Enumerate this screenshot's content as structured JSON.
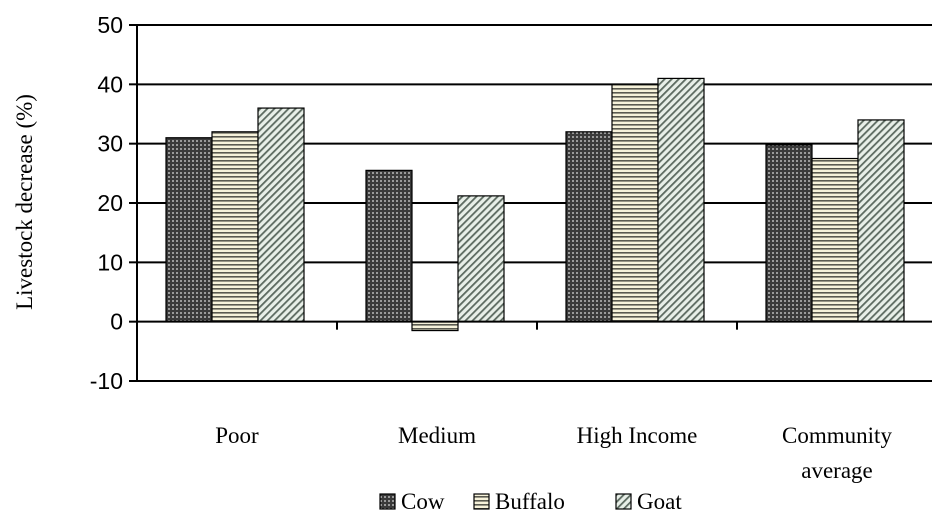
{
  "chart_data": {
    "type": "bar",
    "title": "",
    "xlabel": "",
    "ylabel": "Livestock decrease (%)",
    "ylim": [
      -10,
      50
    ],
    "yticks": [
      -10,
      0,
      10,
      20,
      30,
      40,
      50
    ],
    "grid": true,
    "legend_position": "bottom",
    "categories": [
      [
        "Poor"
      ],
      [
        "Medium"
      ],
      [
        "High Income"
      ],
      [
        "Community",
        "average"
      ]
    ],
    "series": [
      {
        "name": "Cow",
        "values": [
          31,
          25.5,
          32,
          29.8
        ],
        "color": "#4a4a4a",
        "pattern": "cross-hatch-dark"
      },
      {
        "name": "Buffalo",
        "values": [
          32,
          -1.5,
          40,
          27.5
        ],
        "color": "#f2eed6",
        "pattern": "horizontal-lines"
      },
      {
        "name": "Goat",
        "values": [
          36,
          21.2,
          41,
          34
        ],
        "color": "#dfe8e2",
        "pattern": "diagonal-lines"
      }
    ]
  }
}
